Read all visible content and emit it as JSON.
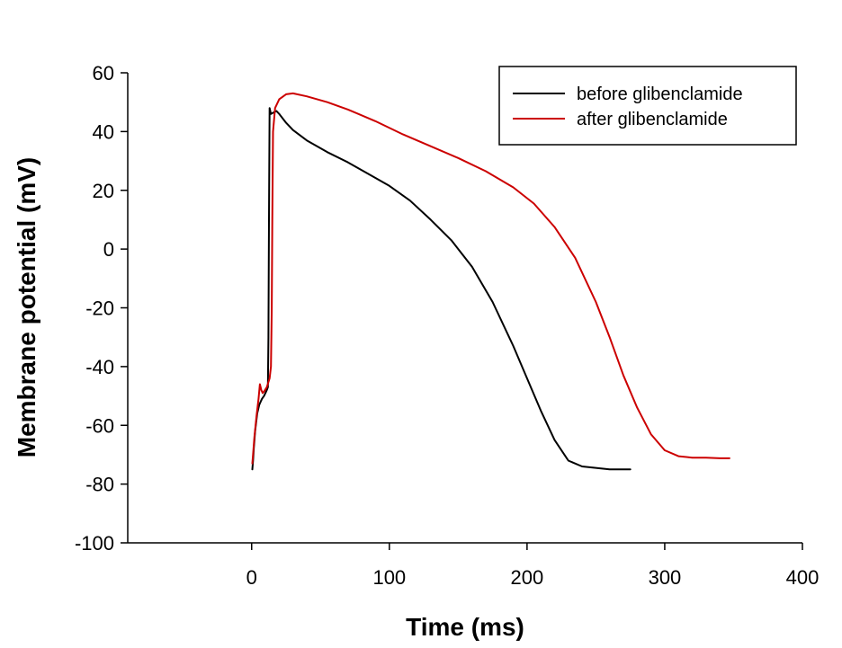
{
  "chart_data": {
    "type": "line",
    "title": "",
    "xlabel": "Time (ms)",
    "ylabel": "Membrane potential (mV)",
    "xlim": [
      -90,
      400
    ],
    "ylim": [
      -100,
      60
    ],
    "x_ticks": [
      0,
      100,
      200,
      300,
      400
    ],
    "y_ticks": [
      -100,
      -80,
      -60,
      -40,
      -20,
      0,
      20,
      40,
      60
    ],
    "grid": false,
    "legend_position": "top-right",
    "series": [
      {
        "name": "before glibenclamide",
        "color": "#000000",
        "x": [
          0.5,
          1.0,
          1.5,
          2.5,
          4.0,
          5.5,
          6.5,
          7.5,
          9.0,
          10.0,
          11.0,
          11.8,
          12.2,
          12.6,
          13.0,
          14.0,
          16.0,
          18.0,
          20.0,
          25.0,
          30.0,
          40.0,
          55.0,
          70.0,
          85.0,
          100.0,
          115.0,
          130.0,
          145.0,
          160.0,
          175.0,
          190.0,
          200.0,
          210.0,
          220.0,
          230.0,
          240.0,
          250.0,
          260.0,
          270.0,
          275.0
        ],
        "y": [
          -75,
          -72,
          -68,
          -62,
          -56,
          -53,
          -52,
          -51,
          -50,
          -49,
          -48,
          -47,
          -30,
          10,
          48,
          46,
          46.5,
          47,
          46,
          43,
          40.5,
          37,
          33,
          29.5,
          25.5,
          21.5,
          16.5,
          10,
          3,
          -6,
          -18,
          -33,
          -44,
          -55,
          -65,
          -72,
          -74,
          -74.5,
          -75,
          -75,
          -75
        ]
      },
      {
        "name": "after glibenclamide",
        "color": "#cc0000",
        "x": [
          0.5,
          1.0,
          2.0,
          3.5,
          5.0,
          6.0,
          7.0,
          8.0,
          9.0,
          11.0,
          13.0,
          14.0,
          14.6,
          15.0,
          15.5,
          17.0,
          20.0,
          25.0,
          30.0,
          40.0,
          55.0,
          70.0,
          90.0,
          110.0,
          130.0,
          150.0,
          170.0,
          190.0,
          205.0,
          220.0,
          235.0,
          250.0,
          260.0,
          270.0,
          280.0,
          290.0,
          300.0,
          310.0,
          320.0,
          330.0,
          340.0,
          347.0
        ],
        "y": [
          -73,
          -70,
          -64,
          -57,
          -51,
          -46,
          -48,
          -49,
          -48.5,
          -47,
          -44,
          -40,
          -20,
          10,
          40,
          48,
          51,
          52.7,
          53,
          52,
          50,
          47.5,
          43.5,
          39,
          35,
          31,
          26.5,
          21,
          15.5,
          7.5,
          -3,
          -18,
          -30,
          -43,
          -54,
          -63,
          -68.5,
          -70.5,
          -71,
          -71,
          -71.2,
          -71.2
        ]
      }
    ]
  }
}
